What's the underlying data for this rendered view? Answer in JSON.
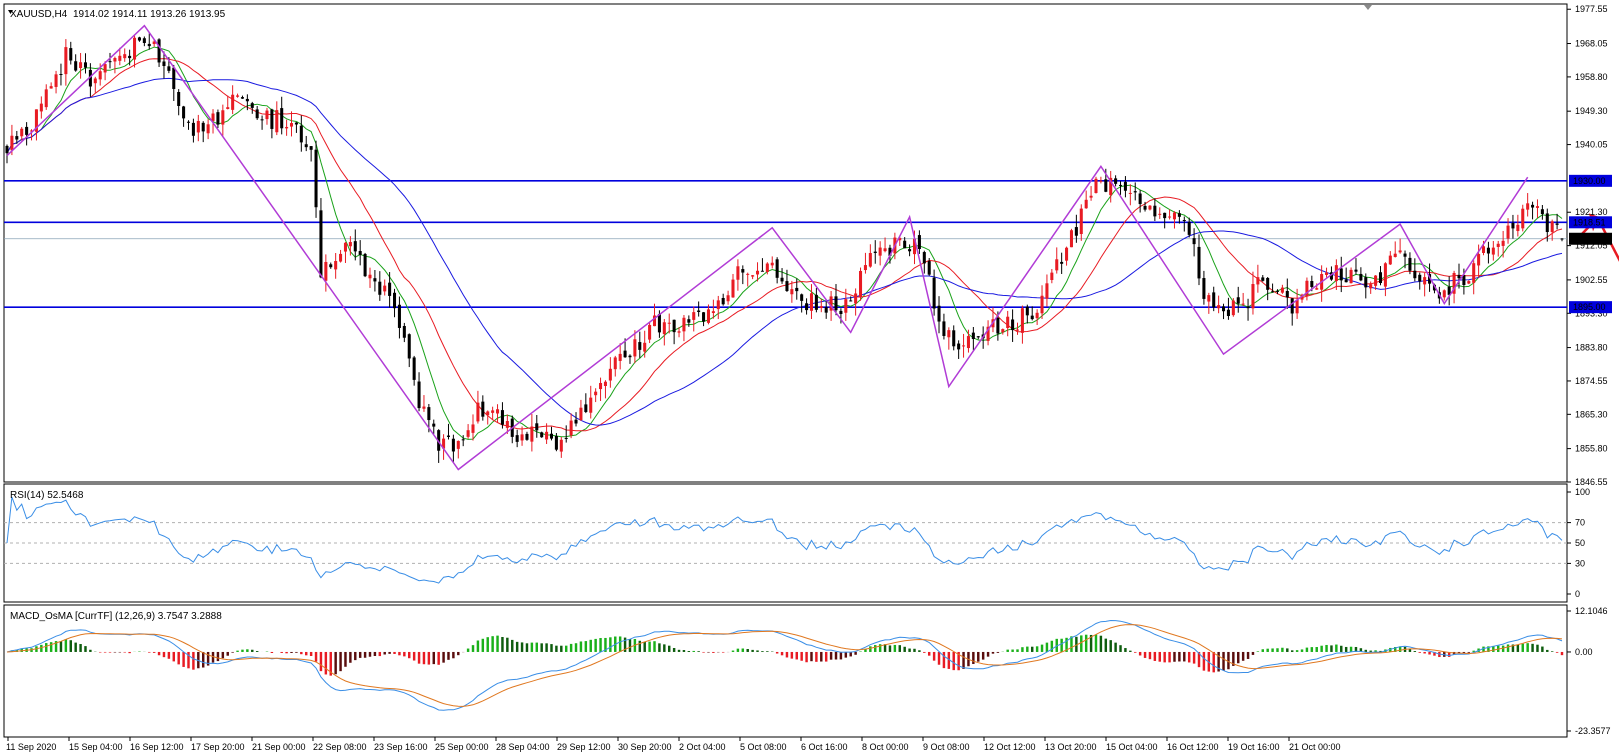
{
  "header": {
    "symbol_label": "XAUUSD,H4",
    "ohlc": "1914.02 1914.11 1913.26 1913.95",
    "rsi_label": "RSI(14) 52.5468",
    "macd_label": "MACD_OsMA [CurrTF] (12,26,9) 3.7547 3.2888"
  },
  "colors": {
    "bull": "#e81b23",
    "bear": "#000000",
    "level": "#0000dd",
    "zigzag": "#b13cd6",
    "ma_fast": "#1aa21a",
    "ma_mid": "#e81b23",
    "ma_slow": "#1a1ae0",
    "rsi": "#3a8ee6",
    "hist_pos_strong": "#1ab01a",
    "hist_pos_weak": "#0d5c0d",
    "hist_neg_strong": "#e81b23",
    "hist_neg_weak": "#5a0d0d",
    "macd_line": "#3a8ee6",
    "signal_line": "#e07820",
    "arrow": "#e81b23"
  },
  "chart_data": [
    {
      "type": "candlestick",
      "symbol": "XAUUSD",
      "timeframe": "H4",
      "ylim": [
        1846.55,
        1979.0
      ],
      "y_ticks": [
        1977.55,
        1968.05,
        1958.8,
        1949.3,
        1940.05,
        1921.3,
        1912.05,
        1902.55,
        1893.3,
        1883.8,
        1874.55,
        1865.3,
        1855.8,
        1846.55
      ],
      "x_ticks": [
        "11 Sep 2020",
        "15 Sep 04:00",
        "16 Sep 12:00",
        "17 Sep 20:00",
        "21 Sep 00:00",
        "22 Sep 08:00",
        "23 Sep 16:00",
        "25 Sep 00:00",
        "28 Sep 04:00",
        "29 Sep 12:00",
        "30 Sep 20:00",
        "2 Oct 04:00",
        "5 Oct 08:00",
        "6 Oct 16:00",
        "8 Oct 00:00",
        "9 Oct 08:00",
        "12 Oct 12:00",
        "13 Oct 20:00",
        "15 Oct 04:00",
        "16 Oct 12:00",
        "19 Oct 16:00",
        "21 Oct 00:00"
      ],
      "horizontal_levels": [
        {
          "value": 1930.0,
          "label": "1930.00"
        },
        {
          "value": 1918.51,
          "label": "1918.51"
        },
        {
          "value": 1895.0,
          "label": "1895.00"
        }
      ],
      "current_price": {
        "value": 1913.95,
        "label": "1913.95"
      },
      "zigzag_anchors": [
        [
          0,
          1937
        ],
        [
          28,
          1973
        ],
        [
          92,
          1850
        ],
        [
          156,
          1917
        ],
        [
          172,
          1888
        ],
        [
          184,
          1920
        ],
        [
          192,
          1873
        ],
        [
          223,
          1934
        ],
        [
          248,
          1882
        ],
        [
          284,
          1918
        ],
        [
          293,
          1896
        ],
        [
          310,
          1931
        ]
      ],
      "close_anchors": [
        [
          0,
          1940
        ],
        [
          6,
          1948
        ],
        [
          12,
          1965
        ],
        [
          18,
          1957
        ],
        [
          24,
          1966
        ],
        [
          28,
          1969
        ],
        [
          32,
          1963
        ],
        [
          36,
          1946
        ],
        [
          40,
          1944
        ],
        [
          46,
          1952
        ],
        [
          52,
          1948
        ],
        [
          58,
          1946
        ],
        [
          62,
          1936
        ],
        [
          64,
          1905
        ],
        [
          70,
          1912
        ],
        [
          76,
          1900
        ],
        [
          80,
          1892
        ],
        [
          84,
          1868
        ],
        [
          88,
          1858
        ],
        [
          92,
          1856
        ],
        [
          96,
          1868
        ],
        [
          100,
          1864
        ],
        [
          104,
          1858
        ],
        [
          108,
          1862
        ],
        [
          112,
          1858
        ],
        [
          116,
          1862
        ],
        [
          120,
          1872
        ],
        [
          124,
          1880
        ],
        [
          128,
          1884
        ],
        [
          132,
          1892
        ],
        [
          136,
          1888
        ],
        [
          140,
          1892
        ],
        [
          144,
          1894
        ],
        [
          150,
          1906
        ],
        [
          156,
          1906
        ],
        [
          160,
          1898
        ],
        [
          166,
          1896
        ],
        [
          172,
          1896
        ],
        [
          176,
          1912
        ],
        [
          182,
          1912
        ],
        [
          186,
          1914
        ],
        [
          190,
          1890
        ],
        [
          194,
          1884
        ],
        [
          198,
          1888
        ],
        [
          204,
          1890
        ],
        [
          210,
          1895
        ],
        [
          216,
          1912
        ],
        [
          222,
          1928
        ],
        [
          226,
          1928
        ],
        [
          230,
          1926
        ],
        [
          234,
          1922
        ],
        [
          238,
          1920
        ],
        [
          242,
          1912
        ],
        [
          244,
          1898
        ],
        [
          248,
          1895
        ],
        [
          252,
          1896
        ],
        [
          256,
          1902
        ],
        [
          262,
          1896
        ],
        [
          266,
          1902
        ],
        [
          272,
          1904
        ],
        [
          278,
          1900
        ],
        [
          284,
          1910
        ],
        [
          288,
          1902
        ],
        [
          292,
          1900
        ],
        [
          296,
          1902
        ],
        [
          300,
          1908
        ],
        [
          306,
          1916
        ],
        [
          310,
          1922
        ],
        [
          314,
          1918
        ],
        [
          317,
          1913.95
        ]
      ],
      "bar_count": 318
    },
    {
      "type": "line",
      "name": "RSI(14)",
      "last_value": 52.5468,
      "ylim": [
        0,
        100
      ],
      "y_ticks": [
        100,
        70,
        50,
        30,
        0
      ],
      "levels": [
        70,
        50,
        30
      ]
    },
    {
      "type": "histogram+line",
      "name": "MACD_OsMA [CurrTF] (12,26,9)",
      "values": [
        3.7547,
        3.2888
      ],
      "ylim": [
        -23.3577,
        12.1046
      ],
      "y_ticks": [
        "12.1046",
        "0.00",
        "-23.3577"
      ]
    }
  ]
}
